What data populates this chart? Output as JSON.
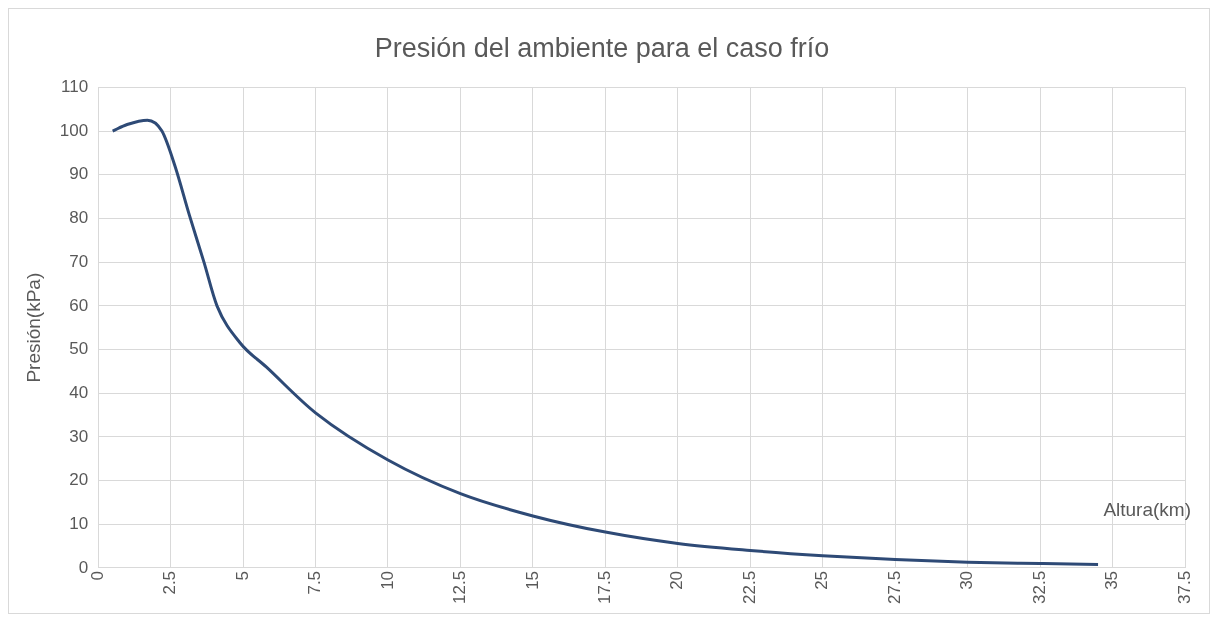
{
  "chart_data": {
    "type": "line",
    "title": "Presión del ambiente para el caso frío",
    "xlabel": "Altura(km)",
    "ylabel": "Presión(kPa)",
    "x": [
      0.5,
      1.0,
      1.7,
      2.2,
      2.65,
      3.15,
      3.65,
      4.1,
      4.9,
      5.8,
      7.5,
      10,
      12.5,
      15,
      17.5,
      20,
      22.5,
      25,
      27.5,
      30,
      32.5,
      34.5
    ],
    "series": [
      {
        "color": "#2e4a76",
        "values": [
          100,
          101.5,
          102.5,
          100,
          92,
          80.7,
          70,
          60,
          51.5,
          46,
          35.5,
          24.7,
          17,
          11.9,
          8.2,
          5.6,
          4,
          2.8,
          1.9,
          1.3,
          1,
          0.8
        ]
      }
    ],
    "xlim": [
      0,
      37.5
    ],
    "xticks": [
      0,
      2.5,
      5,
      7.5,
      10,
      12.5,
      15,
      17.5,
      20,
      22.5,
      25,
      27.5,
      30,
      32.5,
      35,
      37.5
    ],
    "ylim": [
      0,
      110
    ],
    "yticks": [
      0,
      10,
      20,
      30,
      40,
      50,
      60,
      70,
      80,
      90,
      100,
      110
    ],
    "grid": true,
    "legend": false,
    "marker": "none",
    "line_style": "solid"
  }
}
